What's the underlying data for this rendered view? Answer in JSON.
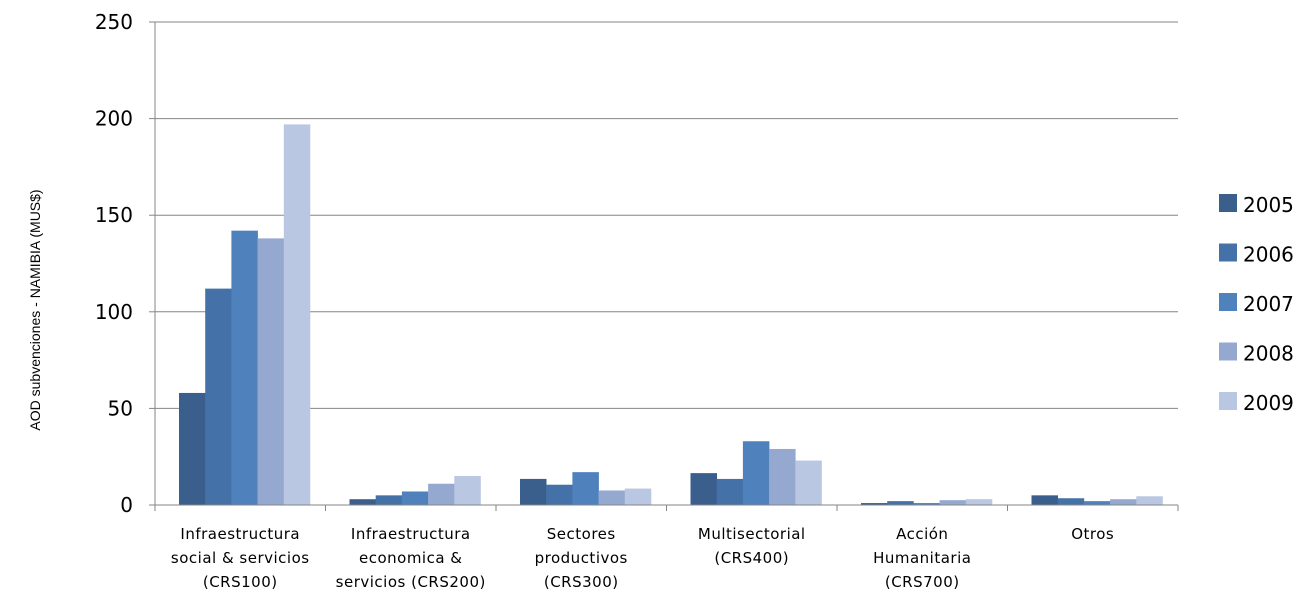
{
  "chart_data": {
    "type": "bar",
    "title": "",
    "xlabel": "",
    "ylabel": "AOD subvenciones - NAMIBIA (MUS$)",
    "ylim": [
      0,
      250
    ],
    "yticks": [
      0,
      50,
      100,
      150,
      200,
      250
    ],
    "grid": true,
    "legend_position": "right",
    "categories": [
      [
        "Infraestructura",
        "social & servicios",
        "(CRS100)"
      ],
      [
        "Infraestructura",
        "economica &",
        "servicios (CRS200)"
      ],
      [
        "Sectores",
        "productivos",
        "(CRS300)"
      ],
      [
        "Multisectorial",
        "(CRS400)"
      ],
      [
        "Acción",
        "Humanitaria",
        "(CRS700)"
      ],
      [
        "Otros"
      ]
    ],
    "series": [
      {
        "name": "2005",
        "color": "#3a5f8d",
        "values": [
          58,
          3,
          13.5,
          16.5,
          1,
          5
        ]
      },
      {
        "name": "2006",
        "color": "#4472a8",
        "values": [
          112,
          5,
          10.5,
          13.5,
          2,
          3.5
        ]
      },
      {
        "name": "2007",
        "color": "#4f81bd",
        "values": [
          142,
          7,
          17,
          33,
          1,
          2
        ]
      },
      {
        "name": "2008",
        "color": "#95a9d0",
        "values": [
          138,
          11,
          7.5,
          29,
          2.5,
          3
        ]
      },
      {
        "name": "2009",
        "color": "#b9c7e2",
        "values": [
          197,
          15,
          8.5,
          23,
          3,
          4.5
        ]
      }
    ]
  }
}
